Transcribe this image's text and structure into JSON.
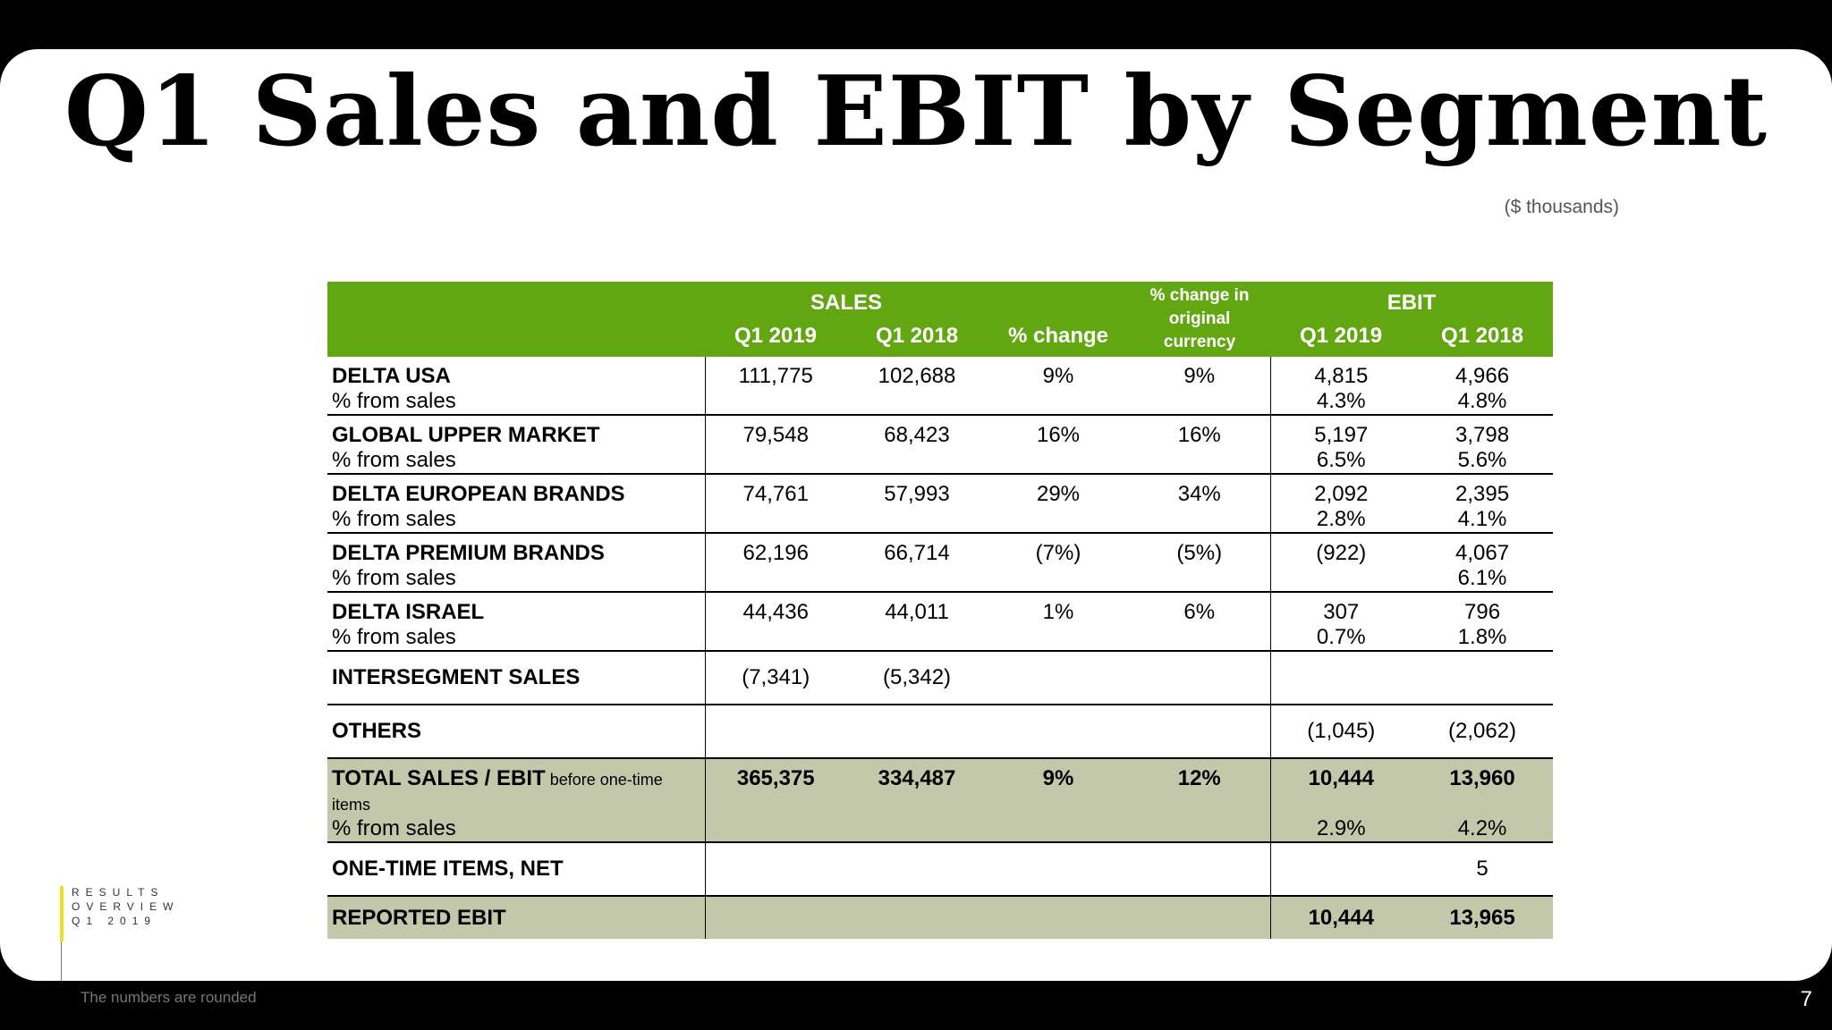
{
  "title": "Q1 Sales and EBIT by Segment",
  "units": "($ thousands)",
  "header": {
    "sales": "SALES",
    "ebit": "EBIT",
    "q1_2019": "Q1 2019",
    "q1_2018": "Q1 2018",
    "pct_change": "% change",
    "pct_change_orig_l1": "% change in",
    "pct_change_orig_l2": "original",
    "pct_change_orig_l3": "currency",
    "ebit_q1_2019": "Q1 2019",
    "ebit_q1_2018": "Q1 2018"
  },
  "sub_label": "% from sales",
  "segments": [
    {
      "name": "DELTA USA",
      "s19": "111,775",
      "s18": "102,688",
      "chg": "9%",
      "chg_orig": "9%",
      "e19": "4,815",
      "e18": "4,966",
      "p19": "4.3%",
      "p18": "4.8%"
    },
    {
      "name": "GLOBAL UPPER MARKET",
      "s19": "79,548",
      "s18": "68,423",
      "chg": "16%",
      "chg_orig": "16%",
      "e19": "5,197",
      "e18": "3,798",
      "p19": "6.5%",
      "p18": "5.6%"
    },
    {
      "name": "DELTA EUROPEAN BRANDS",
      "s19": "74,761",
      "s18": "57,993",
      "chg": "29%",
      "chg_orig": "34%",
      "e19": "2,092",
      "e18": "2,395",
      "p19": "2.8%",
      "p18": "4.1%"
    },
    {
      "name": "DELTA PREMIUM BRANDS",
      "s19": "62,196",
      "s18": "66,714",
      "chg": "(7%)",
      "chg_orig": "(5%)",
      "e19": "(922)",
      "e18": "4,067",
      "p19": "",
      "p18": "6.1%"
    },
    {
      "name": "DELTA ISRAEL",
      "s19": "44,436",
      "s18": "44,011",
      "chg": "1%",
      "chg_orig": "6%",
      "e19": "307",
      "e18": "796",
      "p19": "0.7%",
      "p18": "1.8%"
    }
  ],
  "intersegment": {
    "name": "INTERSEGMENT SALES",
    "s19": "(7,341)",
    "s18": "(5,342)"
  },
  "others": {
    "name": "OTHERS",
    "e19": "(1,045)",
    "e18": "(2,062)"
  },
  "total": {
    "name_bold": "TOTAL SALES / EBIT",
    "name_rest": " before one-time items",
    "s19": "365,375",
    "s18": "334,487",
    "chg": "9%",
    "chg_orig": "12%",
    "e19": "10,444",
    "e18": "13,960",
    "p19": "2.9%",
    "p18": "4.2%"
  },
  "one_time": {
    "name": "ONE-TIME ITEMS, NET",
    "e18": "5"
  },
  "reported": {
    "name": "REPORTED EBIT",
    "e19": "10,444",
    "e18": "13,965"
  },
  "side_label": [
    "RESULTS",
    "OVERVIEW",
    "Q1 2019"
  ],
  "footnote": "The numbers are rounded",
  "page_number": "7",
  "colors": {
    "header_green": "#62a711",
    "total_row": "#c4c8ab",
    "accent_yellow": "#f0e020"
  }
}
